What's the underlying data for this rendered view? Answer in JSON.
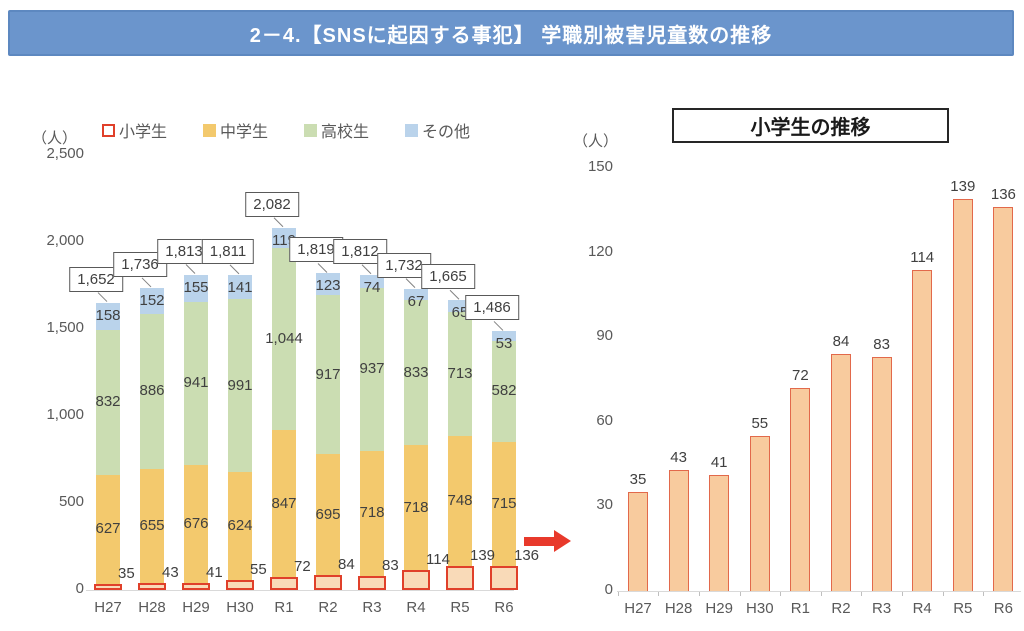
{
  "header": {
    "title": "2－4.【SNSに起因する事犯】 学職別被害児童数の推移"
  },
  "left_chart": {
    "unit_label": "（人）"
  },
  "right_chart": {
    "unit_label": "（人）",
    "title": "小学生の推移"
  },
  "chart_data": [
    {
      "type": "bar",
      "stacked": true,
      "title": "",
      "categories": [
        "H27",
        "H28",
        "H29",
        "H30",
        "R1",
        "R2",
        "R3",
        "R4",
        "R5",
        "R6"
      ],
      "series": [
        {
          "name": "小学生",
          "semantic": "elementary",
          "fill": "#f9dab8",
          "border": "#e0402a",
          "legend_fill": "#ffffff",
          "values": [
            35,
            43,
            41,
            55,
            72,
            84,
            83,
            114,
            139,
            136
          ]
        },
        {
          "name": "中学生",
          "semantic": "middle",
          "fill": "#f3c96d",
          "values": [
            627,
            655,
            676,
            624,
            847,
            695,
            718,
            718,
            748,
            715
          ]
        },
        {
          "name": "高校生",
          "semantic": "high",
          "fill": "#cbddb2",
          "values": [
            832,
            886,
            941,
            991,
            1044,
            917,
            937,
            833,
            713,
            582
          ]
        },
        {
          "name": "その他",
          "semantic": "other",
          "fill": "#bad3eb",
          "values": [
            158,
            152,
            155,
            141,
            119,
            123,
            74,
            67,
            65,
            53
          ]
        }
      ],
      "totals": [
        1652,
        1736,
        1813,
        1811,
        2082,
        1819,
        1812,
        1732,
        1665,
        1486
      ],
      "ylabel": "（人）",
      "ylim": [
        0,
        2500
      ],
      "yticks": [
        0,
        500,
        1000,
        1500,
        2000,
        2500
      ],
      "legend_position": "top",
      "grid": false
    },
    {
      "type": "bar",
      "title": "小学生の推移",
      "categories": [
        "H27",
        "H28",
        "H29",
        "H30",
        "R1",
        "R2",
        "R3",
        "R4",
        "R5",
        "R6"
      ],
      "values": [
        35,
        43,
        41,
        55,
        72,
        84,
        83,
        114,
        139,
        136
      ],
      "ylabel": "（人）",
      "ylim": [
        0,
        150
      ],
      "yticks": [
        0,
        30,
        60,
        90,
        120,
        150
      ],
      "grid": false,
      "bar_fill": "#f8cb9e",
      "bar_border": "#e2694b"
    }
  ],
  "colors": {
    "header_bg": "#6b95cc",
    "header_border": "#5d88c0",
    "arrow": "#e8392b",
    "label_text": "#404040",
    "axis_text": "#595959",
    "axis_line": "#d9d9d9",
    "callout_border": "#595959",
    "connector": "#808080"
  }
}
